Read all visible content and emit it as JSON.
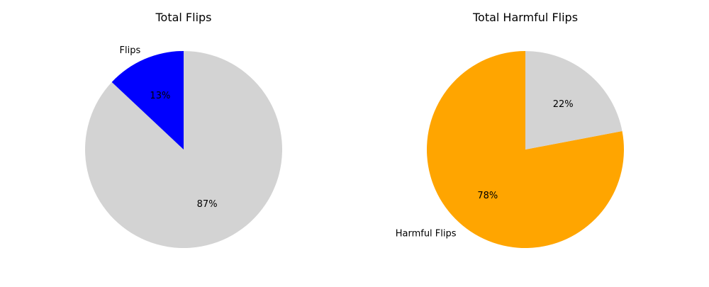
{
  "chart_data": [
    {
      "type": "pie",
      "title": "Total Flips",
      "slices": [
        {
          "label": "Flips",
          "value": 13,
          "pct_label": "13%",
          "color": "#0000ff"
        },
        {
          "label": "",
          "value": 87,
          "pct_label": "87%",
          "color": "#d3d3d3"
        }
      ],
      "start_angle_deg": 90,
      "direction": "counterclockwise"
    },
    {
      "type": "pie",
      "title": "Total Harmful Flips",
      "slices": [
        {
          "label": "",
          "value": 22,
          "pct_label": "22%",
          "color": "#d3d3d3"
        },
        {
          "label": "Harmful Flips",
          "value": 78,
          "pct_label": "78%",
          "color": "#ffa500"
        }
      ],
      "start_angle_deg": 90,
      "direction": "clockwise"
    }
  ]
}
